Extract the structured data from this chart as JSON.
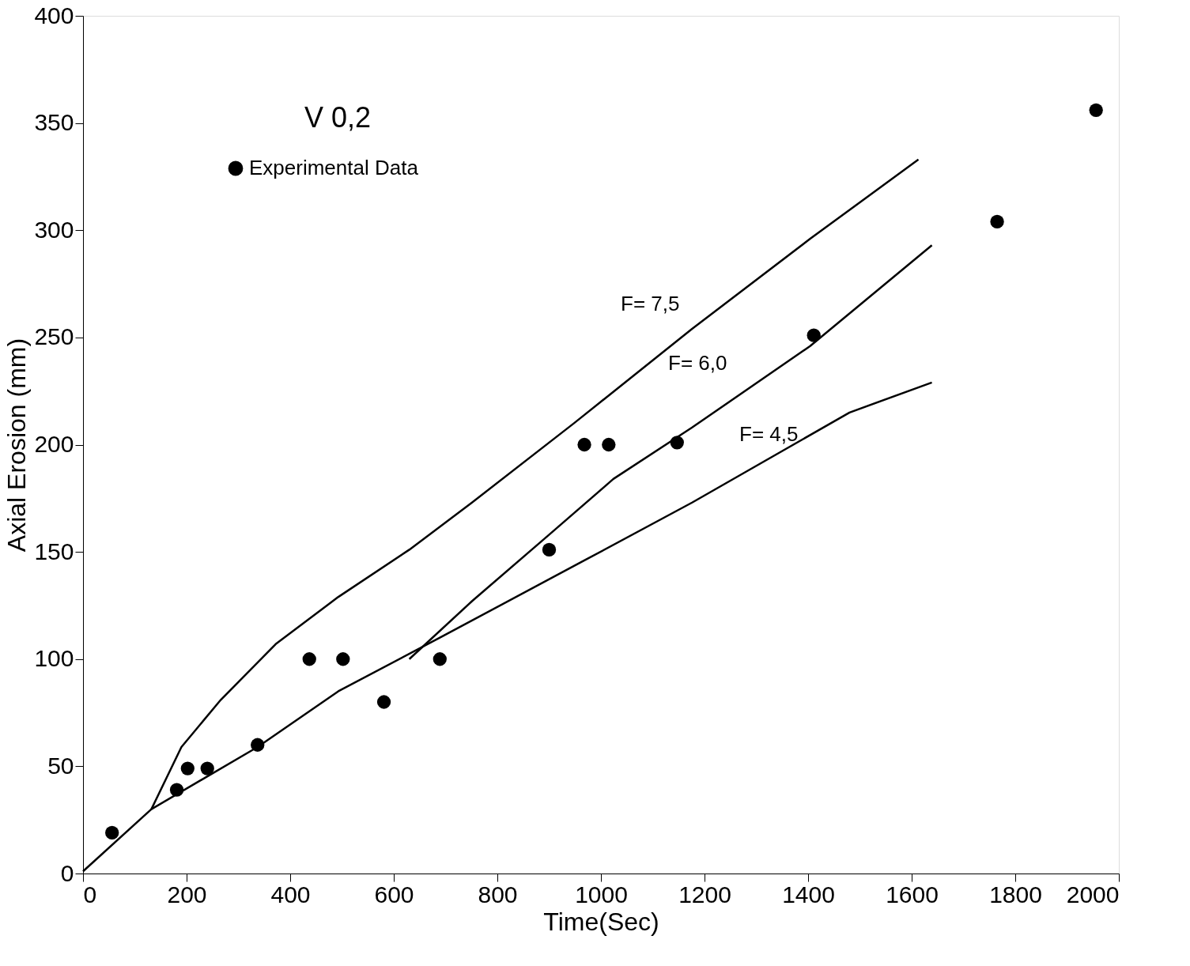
{
  "chart_data": {
    "type": "scatter",
    "xlabel": "Time(Sec)",
    "ylabel": "Axial Erosion (mm)",
    "xlim": [
      0,
      2000
    ],
    "ylim": [
      0,
      400
    ],
    "xticks": [
      0,
      200,
      400,
      600,
      800,
      {
        "value": 1000,
        "label": "1000"
      },
      {
        "value": 1200,
        "label": "1200"
      },
      {
        "value": 1400,
        "label": "1400"
      },
      {
        "value": 1600,
        "label": "1600"
      },
      {
        "value": 1800,
        "label": "1800"
      },
      {
        "value": 2000,
        "label": "2000"
      }
    ],
    "yticks": [
      0,
      50,
      100,
      150,
      200,
      250,
      300,
      350,
      400
    ],
    "grid": false,
    "legend": "top left",
    "series": [
      {
        "name": "Experimental Data",
        "marker": "circle",
        "color": "#000000",
        "x": [
          56,
          181,
          202,
          240,
          337,
          437,
          502,
          581,
          689,
          900,
          968,
          1015,
          1147,
          1411,
          1765,
          1956
        ],
        "values": [
          19,
          39,
          49,
          49,
          60,
          100,
          100,
          80,
          100,
          151,
          200,
          200,
          201,
          251,
          304,
          356
        ]
      },
      {
        "type": "line",
        "line_style": "solid",
        "marker": "none",
        "color": "#000000",
        "x": [
          0,
          132,
          337,
          493,
          689,
          968,
          1176,
          1480,
          1639
        ],
        "values": [
          1,
          30,
          59,
          85,
          110,
          146,
          173,
          215,
          229
        ]
      },
      {
        "type": "line",
        "line_style": "solid",
        "marker": "none",
        "color": "#000000",
        "x": [
          630,
          751,
          900,
          1024,
          1176,
          1404,
          1639
        ],
        "values": [
          100,
          127,
          158,
          184,
          208,
          246,
          293
        ]
      },
      {
        "type": "line",
        "line_style": "solid",
        "marker": "none",
        "color": "#000000",
        "x": [
          132,
          190,
          266,
          372,
          493,
          630,
          751,
          948,
          1176,
          1404,
          1613
        ],
        "values": [
          30,
          59,
          81,
          107,
          129,
          151,
          173,
          210,
          254,
          296,
          333
        ]
      }
    ],
    "annotations": [
      "V 0,2",
      "F= 7,5",
      "F= 6,0",
      "F= 4,5"
    ]
  }
}
